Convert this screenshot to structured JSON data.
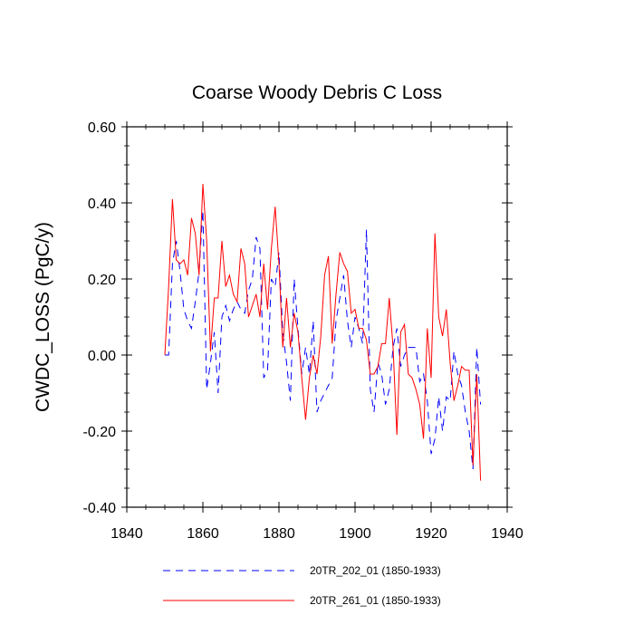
{
  "chart_data": {
    "type": "line",
    "title": "Coarse Woody Debris C Loss",
    "xlabel": "",
    "ylabel": "CWDC_LOSS  (PgC/y)",
    "xlim": [
      1840,
      1940
    ],
    "ylim": [
      -0.4,
      0.6
    ],
    "x_ticks": [
      1840,
      1860,
      1880,
      1900,
      1920,
      1940
    ],
    "x_tick_labels": [
      "1840",
      "1860",
      "1880",
      "1900",
      "1920",
      "1940"
    ],
    "y_ticks": [
      -0.4,
      -0.2,
      0.0,
      0.2,
      0.4,
      0.6
    ],
    "y_tick_labels": [
      "-0.40",
      "-0.20",
      "0.00",
      "0.20",
      "0.40",
      "0.60"
    ],
    "legend_position": "bottom",
    "series": [
      {
        "name": "20TR_202_01 (1850-1933)",
        "color": "#0000ff",
        "style": "dashed",
        "x": [
          1850,
          1851,
          1852,
          1853,
          1854,
          1855,
          1856,
          1857,
          1858,
          1859,
          1860,
          1861,
          1862,
          1863,
          1864,
          1865,
          1866,
          1867,
          1868,
          1869,
          1870,
          1871,
          1872,
          1873,
          1874,
          1875,
          1876,
          1877,
          1878,
          1879,
          1880,
          1881,
          1882,
          1883,
          1884,
          1885,
          1886,
          1887,
          1888,
          1889,
          1890,
          1891,
          1892,
          1893,
          1894,
          1895,
          1896,
          1897,
          1898,
          1899,
          1900,
          1901,
          1902,
          1903,
          1904,
          1905,
          1906,
          1907,
          1908,
          1909,
          1910,
          1911,
          1912,
          1913,
          1914,
          1915,
          1916,
          1917,
          1918,
          1919,
          1920,
          1921,
          1922,
          1923,
          1924,
          1925,
          1926,
          1927,
          1928,
          1929,
          1930,
          1931,
          1932,
          1933
        ],
        "y": [
          0.0,
          0.0,
          0.24,
          0.3,
          0.22,
          0.12,
          0.09,
          0.07,
          0.14,
          0.22,
          0.38,
          -0.09,
          -0.02,
          0.06,
          -0.1,
          0.1,
          0.13,
          0.09,
          0.12,
          0.14,
          0.12,
          0.11,
          0.17,
          0.2,
          0.31,
          0.28,
          -0.06,
          -0.04,
          0.2,
          0.18,
          0.27,
          0.06,
          -0.02,
          -0.12,
          0.2,
          0.07,
          -0.05,
          0.02,
          -0.05,
          0.09,
          -0.15,
          -0.12,
          -0.1,
          -0.08,
          -0.06,
          0.09,
          0.15,
          0.21,
          0.09,
          0.02,
          0.1,
          0.07,
          0.03,
          0.33,
          -0.09,
          -0.15,
          -0.02,
          -0.05,
          -0.13,
          -0.09,
          0.02,
          0.07,
          -0.03,
          0.0,
          0.02,
          0.02,
          0.02,
          -0.07,
          -0.05,
          -0.12,
          -0.26,
          -0.22,
          -0.11,
          -0.2,
          -0.11,
          -0.12,
          0.01,
          -0.05,
          -0.08,
          -0.15,
          -0.2,
          -0.3,
          0.02,
          -0.13
        ]
      },
      {
        "name": "20TR_261_01 (1850-1933)",
        "color": "#ff0000",
        "style": "solid",
        "x": [
          1850,
          1851,
          1852,
          1853,
          1854,
          1855,
          1856,
          1857,
          1858,
          1859,
          1860,
          1861,
          1862,
          1863,
          1864,
          1865,
          1866,
          1867,
          1868,
          1869,
          1870,
          1871,
          1872,
          1873,
          1874,
          1875,
          1876,
          1877,
          1878,
          1879,
          1880,
          1881,
          1882,
          1883,
          1884,
          1885,
          1886,
          1887,
          1888,
          1889,
          1890,
          1891,
          1892,
          1893,
          1894,
          1895,
          1896,
          1897,
          1898,
          1899,
          1900,
          1901,
          1902,
          1903,
          1904,
          1905,
          1906,
          1907,
          1908,
          1909,
          1910,
          1911,
          1912,
          1913,
          1914,
          1915,
          1916,
          1917,
          1918,
          1919,
          1920,
          1921,
          1922,
          1923,
          1924,
          1925,
          1926,
          1927,
          1928,
          1929,
          1930,
          1931,
          1932,
          1933
        ],
        "y": [
          0.0,
          0.18,
          0.41,
          0.25,
          0.24,
          0.25,
          0.21,
          0.36,
          0.32,
          0.21,
          0.45,
          0.3,
          0.01,
          0.15,
          0.15,
          0.3,
          0.18,
          0.21,
          0.16,
          0.14,
          0.28,
          0.24,
          0.1,
          0.13,
          0.16,
          0.1,
          0.24,
          0.12,
          0.28,
          0.39,
          0.24,
          0.02,
          0.15,
          0.02,
          0.11,
          0.06,
          -0.06,
          -0.17,
          -0.06,
          0.0,
          -0.05,
          0.05,
          0.21,
          0.26,
          0.03,
          0.16,
          0.27,
          0.24,
          0.22,
          0.11,
          0.12,
          0.07,
          0.07,
          0.04,
          -0.05,
          -0.05,
          -0.03,
          0.03,
          0.03,
          0.15,
          0.02,
          -0.21,
          0.06,
          0.08,
          -0.05,
          -0.06,
          -0.09,
          -0.13,
          -0.22,
          0.07,
          -0.06,
          0.32,
          0.1,
          0.05,
          0.12,
          -0.02,
          -0.12,
          -0.08,
          -0.03,
          -0.04,
          -0.04,
          -0.29,
          -0.05,
          -0.33
        ]
      }
    ]
  }
}
